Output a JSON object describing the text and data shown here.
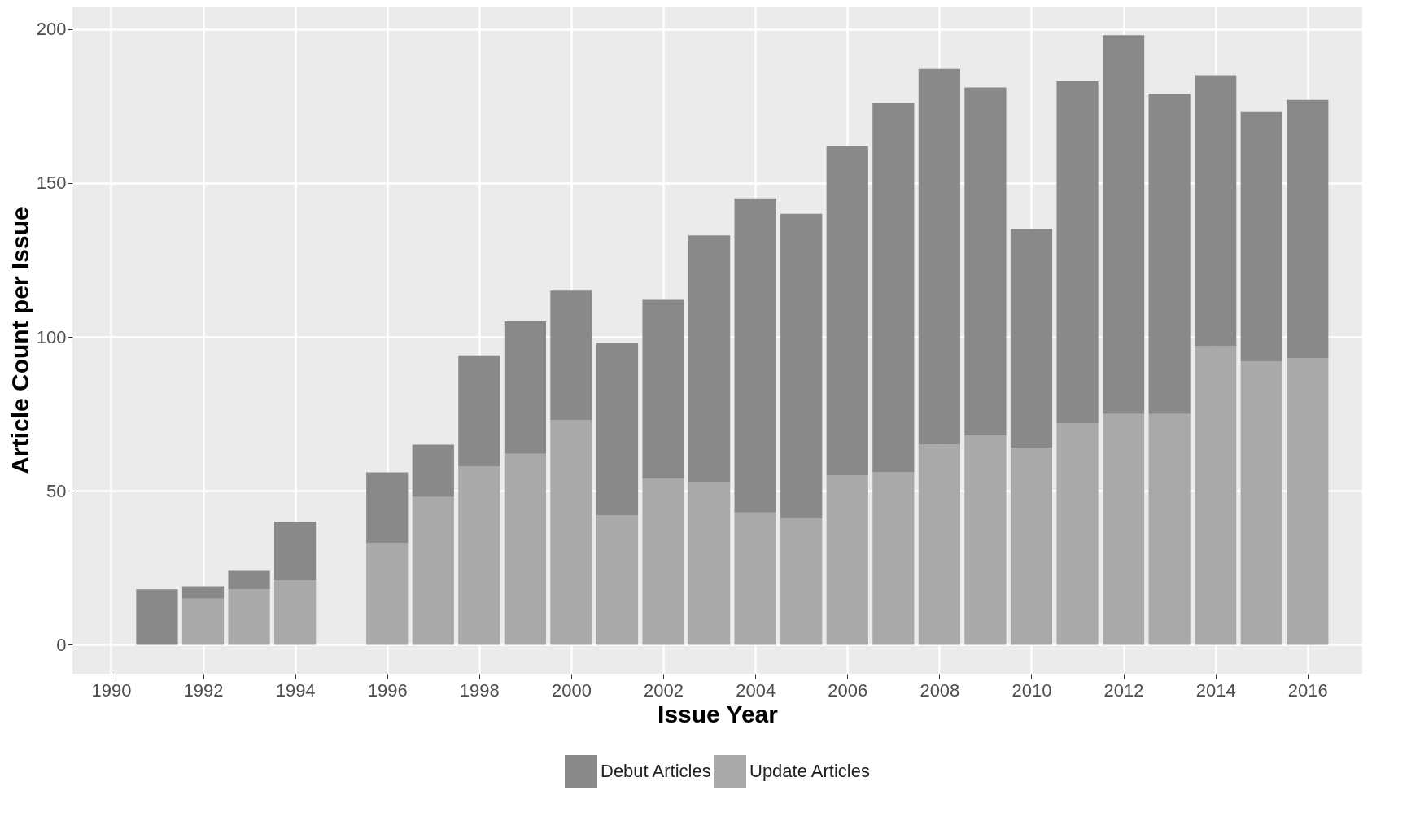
{
  "chart_data": {
    "type": "bar",
    "stacked": true,
    "xlabel": "Issue Year",
    "ylabel": "Article Count per Issue",
    "x": [
      1991,
      1992,
      1993,
      1994,
      1996,
      1997,
      1998,
      1999,
      2000,
      2001,
      2002,
      2003,
      2004,
      2005,
      2006,
      2007,
      2008,
      2009,
      2010,
      2011,
      2012,
      2013,
      2014,
      2015,
      2016
    ],
    "series": [
      {
        "name": "Update Articles",
        "color": "#a9a9a9",
        "values": [
          null,
          15,
          18,
          21,
          33,
          48,
          58,
          62,
          73,
          42,
          54,
          53,
          43,
          41,
          55,
          56,
          65,
          68,
          64,
          72,
          75,
          75,
          97,
          92,
          93
        ]
      },
      {
        "name": "Debut Articles",
        "color": "#898989",
        "values": [
          18,
          4,
          6,
          19,
          23,
          17,
          36,
          43,
          42,
          56,
          58,
          80,
          102,
          99,
          107,
          120,
          122,
          113,
          71,
          111,
          123,
          104,
          88,
          81,
          84
        ]
      }
    ],
    "xlim": [
      1989.25,
      2017.1
    ],
    "xticks": [
      1990,
      1992,
      1994,
      1996,
      1998,
      2000,
      2002,
      2004,
      2006,
      2008,
      2010,
      2012,
      2014,
      2016
    ],
    "ylim": [
      -9.4,
      207.3
    ],
    "yticks": [
      0,
      50,
      100,
      150,
      200
    ],
    "grid": true,
    "legend": "bottom"
  }
}
